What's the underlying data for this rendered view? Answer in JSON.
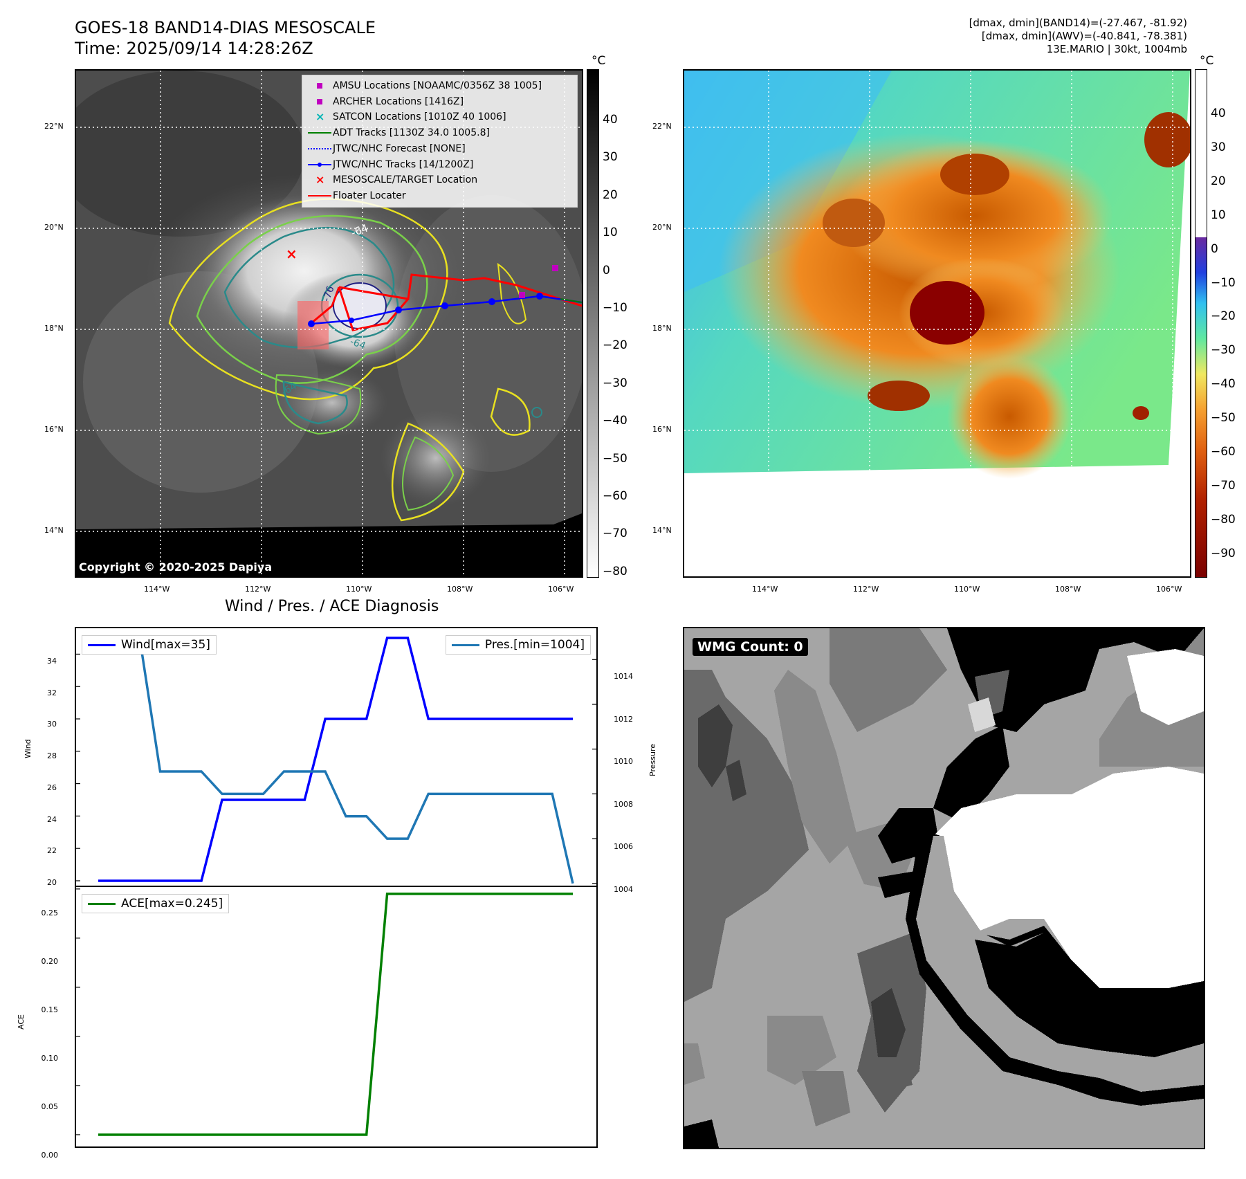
{
  "header": {
    "title_line1": "GOES-18 BAND14-DIAS MESOSCALE",
    "title_line2": "Time: 2025/09/14 14:28:26Z",
    "stats_line1": "[dmax, dmin](BAND14)=(-27.467, -81.92)",
    "stats_line2": "[dmax, dmin](AWV)=(-40.841, -78.381)",
    "stats_line3": "13E.MARIO | 30kt, 1004mb"
  },
  "map_axes": {
    "lat_labels": [
      "22°N",
      "20°N",
      "18°N",
      "16°N",
      "14°N"
    ],
    "lon_labels": [
      "114°W",
      "112°W",
      "110°W",
      "108°W",
      "106°W"
    ]
  },
  "ir_panel": {
    "copyright": "Copyright © 2020-2025 Dapiya",
    "colorbar_unit": "°C",
    "colorbar_ticks": [
      "40",
      "30",
      "20",
      "10",
      "0",
      "−10",
      "−20",
      "−30",
      "−40",
      "−50",
      "−60",
      "−70",
      "−80"
    ],
    "contour_labels": [
      "-64",
      "-76",
      "-64",
      "-64"
    ],
    "legend": [
      {
        "label": "AMSU Locations [NOAAMC/0356Z 38 1005]",
        "symbol": "square",
        "color": "#c000c0"
      },
      {
        "label": "ARCHER Locations [1416Z]",
        "symbol": "square",
        "color": "#c000c0"
      },
      {
        "label": "SATCON Locations [1010Z 40 1006]",
        "symbol": "x",
        "color": "#00b5b5"
      },
      {
        "label": "ADT Tracks [1130Z 34.0 1005.8]",
        "symbol": "line",
        "color": "#008000"
      },
      {
        "label": "JTWC/NHC Forecast [NONE]",
        "symbol": "dotted",
        "color": "#0000ff"
      },
      {
        "label": "JTWC/NHC Tracks [14/1200Z]",
        "symbol": "line-dot",
        "color": "#0000ff"
      },
      {
        "label": "MESOSCALE/TARGET Location",
        "symbol": "x",
        "color": "#ff0000"
      },
      {
        "label": "Floater Locater",
        "symbol": "line",
        "color": "#ff0000"
      }
    ]
  },
  "awv_panel": {
    "colorbar_unit": "°C",
    "colorbar_ticks": [
      "40",
      "30",
      "20",
      "10",
      "0",
      "−10",
      "−20",
      "−30",
      "−40",
      "−50",
      "−60",
      "−70",
      "−80",
      "−90"
    ]
  },
  "diag_panel": {
    "title": "Wind / Pres. / ACE Diagnosis",
    "wind_axis_label": "Wind",
    "pressure_axis_label": "Pressure",
    "ace_axis_label": "ACE",
    "wind_legend": "Wind[max=35]",
    "pres_legend": "Pres.[min=1004]",
    "ace_legend": "ACE[max=0.245]",
    "wind_ticks": [
      "34",
      "32",
      "30",
      "28",
      "26",
      "24",
      "22",
      "20"
    ],
    "pres_ticks": [
      "1014",
      "1012",
      "1010",
      "1008",
      "1006",
      "1004"
    ],
    "ace_ticks": [
      "0.25",
      "0.20",
      "0.15",
      "0.10",
      "0.05",
      "0.00"
    ]
  },
  "wmg_panel": {
    "label": "WMG Count: 0"
  },
  "chart_data": [
    {
      "type": "line",
      "name": "wind",
      "x": [
        0,
        1,
        2,
        3,
        4,
        5,
        6,
        7,
        8,
        9,
        10,
        11,
        12,
        13,
        14,
        15,
        16,
        17,
        18,
        19,
        20,
        21,
        22,
        23
      ],
      "series": [
        {
          "name": "Wind[max=35]",
          "color": "#0000ff",
          "values": [
            20,
            20,
            20,
            20,
            20,
            20,
            25,
            25,
            25,
            25,
            25,
            30,
            30,
            30,
            35,
            35,
            30,
            30,
            30,
            30,
            30,
            30,
            30,
            30
          ]
        },
        {
          "name": "Pres.[min=1004]",
          "color": "#1f77b4",
          "values": [
            1015,
            1015,
            1015,
            1009,
            1009,
            1009,
            1008,
            1008,
            1008,
            1009,
            1009,
            1009,
            1007,
            1007,
            1006,
            1006,
            1008,
            1008,
            1008,
            1008,
            1008,
            1008,
            1008,
            1004
          ]
        }
      ],
      "ylim_wind": [
        19.7,
        35.6
      ],
      "ylim_pressure": [
        1003.9,
        1015.4
      ]
    },
    {
      "type": "line",
      "name": "ace",
      "x": [
        0,
        1,
        2,
        3,
        4,
        5,
        6,
        7,
        8,
        9,
        10,
        11,
        12,
        13,
        14,
        15,
        16,
        17,
        18,
        19,
        20,
        21,
        22,
        23
      ],
      "series": [
        {
          "name": "ACE[max=0.245]",
          "color": "#008000",
          "values": [
            0,
            0,
            0,
            0,
            0,
            0,
            0,
            0,
            0,
            0,
            0,
            0,
            0,
            0,
            0.245,
            0.245,
            0.245,
            0.245,
            0.245,
            0.245,
            0.245,
            0.245,
            0.245,
            0.245
          ]
        }
      ],
      "ylim": [
        -0.012,
        0.252
      ]
    }
  ]
}
